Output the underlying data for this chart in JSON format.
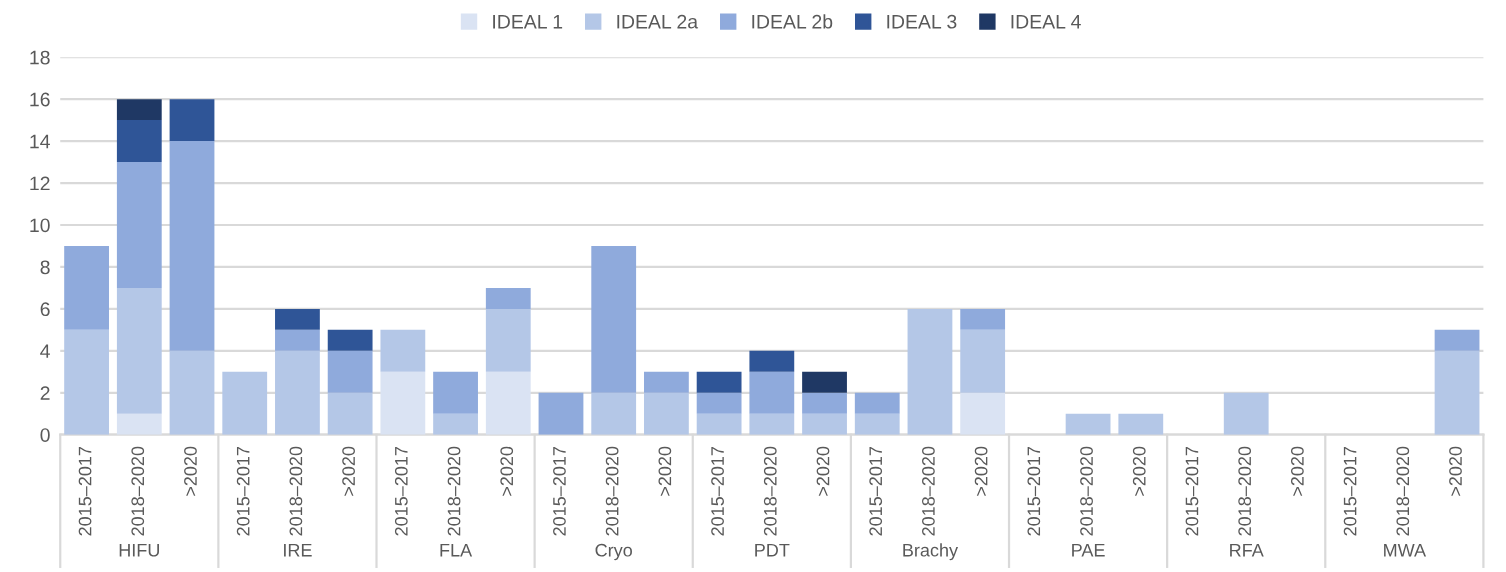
{
  "chart_data": {
    "type": "bar",
    "stacked": true,
    "categories": [
      "2015–2017",
      "2018–2020",
      ">2020",
      "2015–2017",
      "2018–2020",
      ">2020",
      "2015–2017",
      "2018–2020",
      ">2020",
      "2015–2017",
      "2018–2020",
      ">2020",
      "2015–2017",
      "2018–2020",
      ">2020",
      "2015–2017",
      "2018–2020",
      ">2020",
      "2015–2017",
      "2018–2020",
      ">2020",
      "2015–2017",
      "2018–2020",
      ">2020",
      "2015–2017",
      "2018–2020",
      ">2020"
    ],
    "annotations": [
      "HIFU",
      "IRE",
      "FLA",
      "Cryo",
      "PDT",
      "Brachy",
      "PAE",
      "RFA",
      "MWA"
    ],
    "series": [
      {
        "name": "IDEAL 1",
        "color": "#dae3f3",
        "values": [
          0,
          1,
          0,
          0,
          0,
          0,
          3,
          0,
          3,
          0,
          0,
          0,
          0,
          0,
          0,
          0,
          0,
          2,
          0,
          0,
          0,
          0,
          0,
          0,
          0,
          0,
          0
        ]
      },
      {
        "name": "IDEAL 2a",
        "color": "#b4c7e7",
        "values": [
          5,
          6,
          4,
          3,
          4,
          2,
          2,
          1,
          3,
          0,
          2,
          2,
          1,
          1,
          1,
          1,
          6,
          3,
          0,
          1,
          1,
          0,
          2,
          0,
          0,
          0,
          4
        ]
      },
      {
        "name": "IDEAL 2b",
        "color": "#8faadc",
        "values": [
          4,
          6,
          10,
          0,
          1,
          2,
          0,
          2,
          1,
          2,
          7,
          1,
          1,
          2,
          1,
          1,
          0,
          1,
          0,
          0,
          0,
          0,
          0,
          0,
          0,
          0,
          1
        ]
      },
      {
        "name": "IDEAL 3",
        "color": "#2f5597",
        "values": [
          0,
          2,
          2,
          0,
          1,
          1,
          0,
          0,
          0,
          0,
          0,
          0,
          1,
          1,
          0,
          0,
          0,
          0,
          0,
          0,
          0,
          0,
          0,
          0,
          0,
          0,
          0
        ]
      },
      {
        "name": "IDEAL 4",
        "color": "#1f3864",
        "values": [
          0,
          1,
          0,
          0,
          0,
          0,
          0,
          0,
          0,
          0,
          0,
          0,
          0,
          0,
          1,
          0,
          0,
          0,
          0,
          0,
          0,
          0,
          0,
          0,
          0,
          0,
          0
        ]
      }
    ],
    "ylim": [
      0,
      18
    ],
    "yticks": [
      0,
      2,
      4,
      6,
      8,
      10,
      12,
      14,
      16,
      18
    ],
    "grid": "y",
    "legend": "top"
  }
}
